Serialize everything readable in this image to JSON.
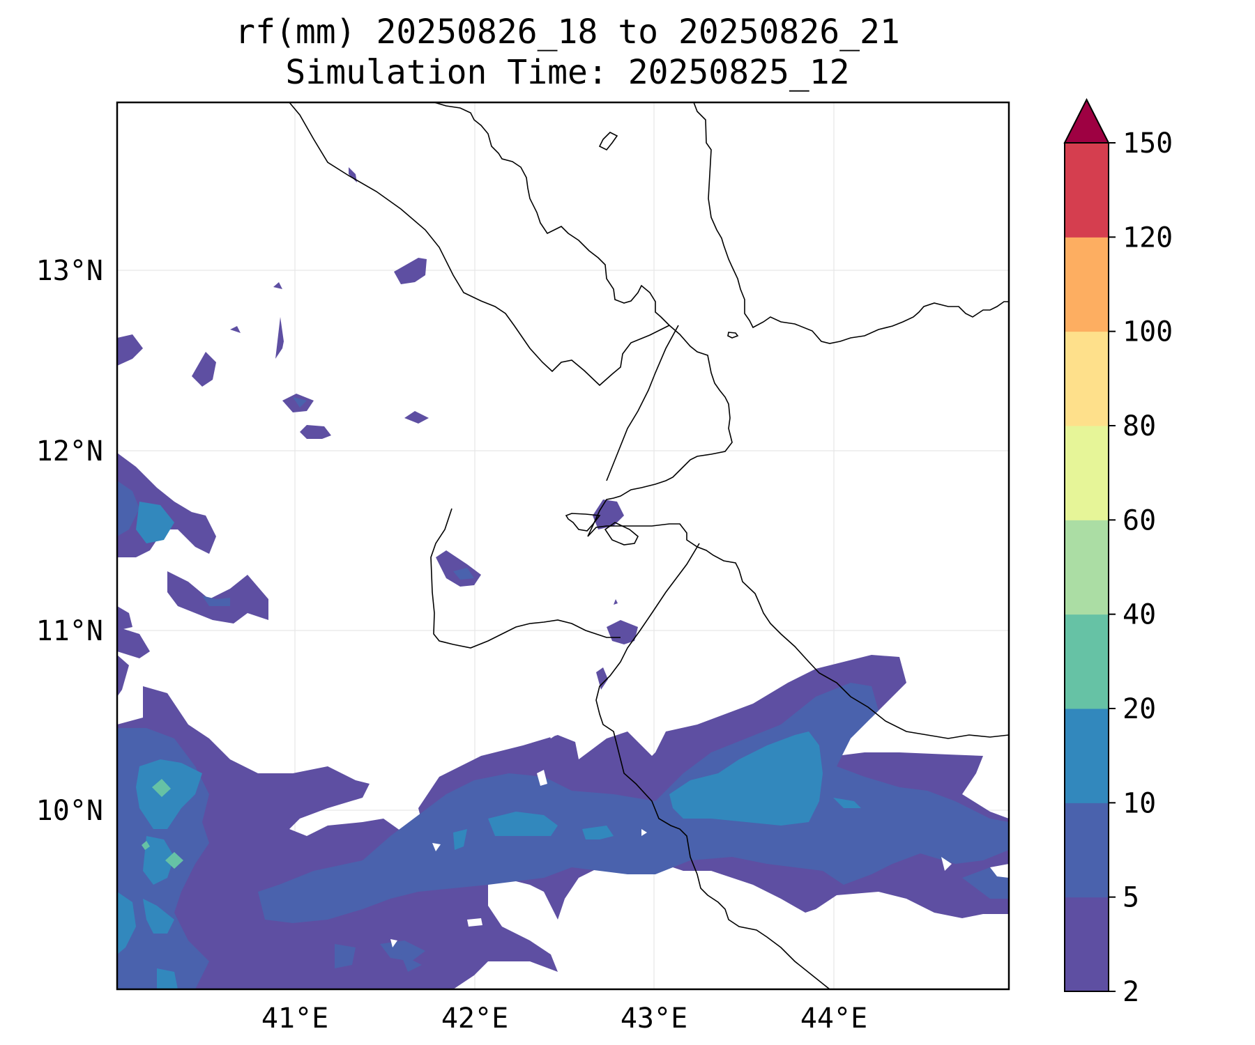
{
  "title": {
    "line1": "rf(mm) 20250826_18 to 20250826_21",
    "line2": "Simulation Time: 20250825_12"
  },
  "map": {
    "x_ticks": [
      "41°E",
      "42°E",
      "43°E",
      "44°E"
    ],
    "y_ticks": [
      "13°N",
      "12°N",
      "11°N",
      "10°N"
    ],
    "lon_range": [
      40.0,
      45.0
    ],
    "lat_range": [
      9.0,
      13.95
    ],
    "gridlines": true
  },
  "colorbar": {
    "labels": [
      "2",
      "5",
      "10",
      "20",
      "40",
      "60",
      "80",
      "100",
      "120",
      "150"
    ],
    "colors": [
      "#5e4fa2",
      "#4a62ad",
      "#3288bd",
      "#66c2a5",
      "#abdda4",
      "#e6f598",
      "#fee08b",
      "#fdae61",
      "#d53e4f",
      "#9e0142"
    ],
    "extend": "max"
  }
}
